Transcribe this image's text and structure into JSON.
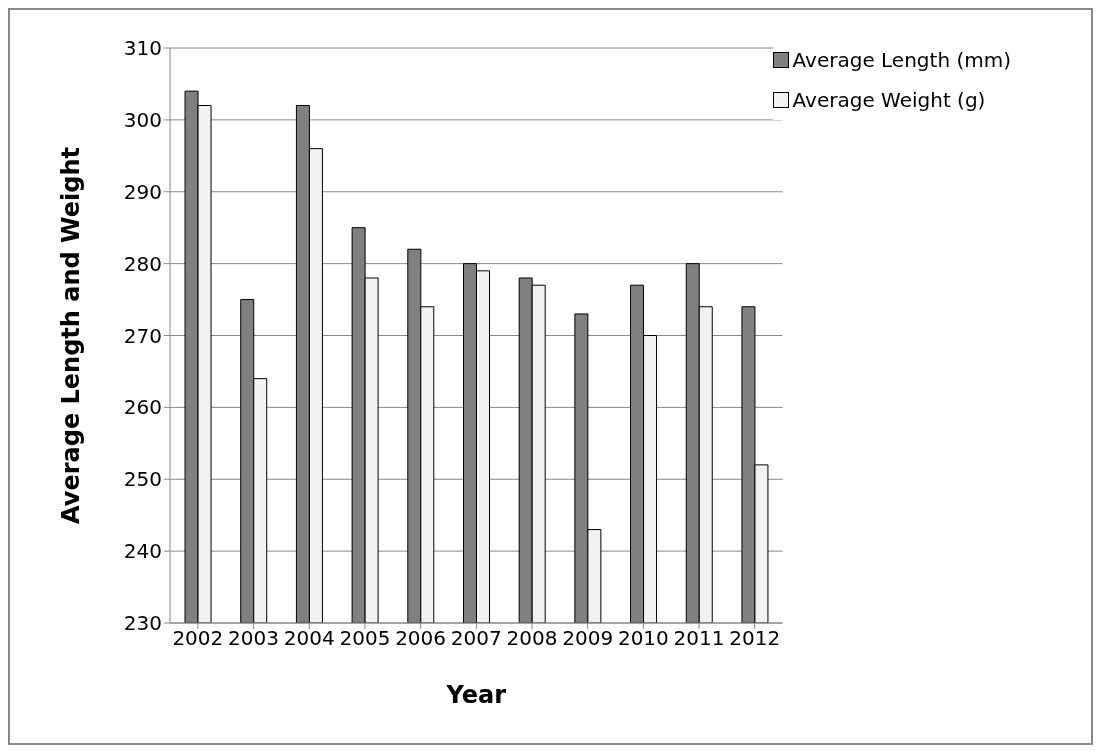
{
  "chart_data": {
    "type": "bar",
    "xlabel": "Year",
    "ylabel": "Average Length and Weight",
    "categories": [
      "2002",
      "2003",
      "2004",
      "2005",
      "2006",
      "2007",
      "2008",
      "2009",
      "2010",
      "2011",
      "2012"
    ],
    "series": [
      {
        "name": "Average Length (mm)",
        "color": "#808080",
        "values": [
          304,
          275,
          302,
          285,
          282,
          280,
          278,
          273,
          277,
          280,
          274
        ]
      },
      {
        "name": "Average Weight (g)",
        "color": "#f2f2f2",
        "values": [
          302,
          264,
          296,
          278,
          274,
          279,
          277,
          243,
          270,
          274,
          252
        ]
      }
    ],
    "ylim": [
      230,
      310
    ],
    "yticks": [
      230,
      240,
      250,
      260,
      270,
      280,
      290,
      300,
      310
    ],
    "grid": "y",
    "legend": "top right"
  }
}
